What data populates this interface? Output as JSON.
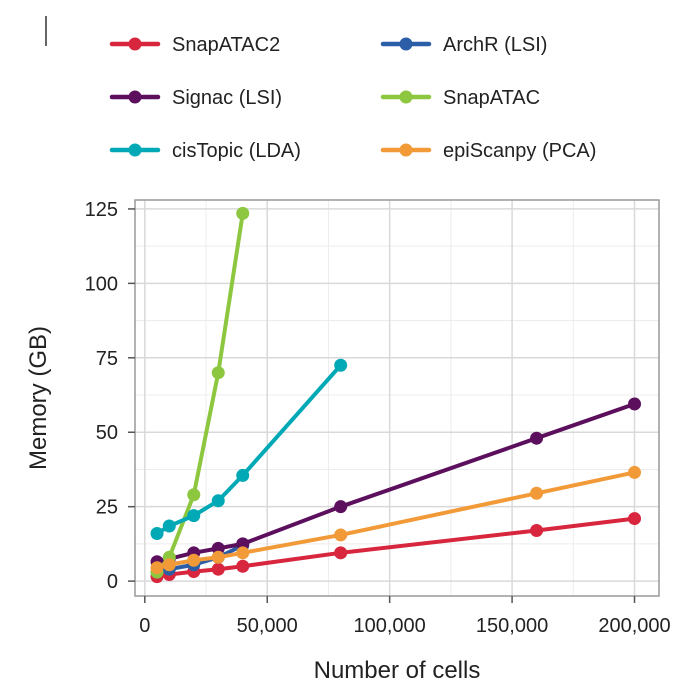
{
  "chart_data": {
    "type": "line",
    "title": "",
    "xlabel": "Number of cells",
    "ylabel": "Memory (GB)",
    "xlim": [
      -4000,
      210000
    ],
    "ylim": [
      -5,
      128
    ],
    "xticks": [
      0,
      50000,
      100000,
      150000,
      200000
    ],
    "xtick_labels": [
      "0",
      "50,000",
      "100,000",
      "150,000",
      "200,000"
    ],
    "yticks": [
      0,
      25,
      50,
      75,
      100,
      125
    ],
    "ytick_labels": [
      "0",
      "25",
      "50",
      "75",
      "100",
      "125"
    ],
    "grid": true,
    "legend_position": "top",
    "series": [
      {
        "name": "SnapATAC2",
        "color": "#d7263d",
        "x": [
          5000,
          10000,
          20000,
          30000,
          40000,
          80000,
          160000,
          200000
        ],
        "y": [
          1.5,
          2.2,
          3.2,
          4.0,
          5.0,
          9.5,
          17.0,
          21.0
        ]
      },
      {
        "name": "ArchR (LSI)",
        "color": "#2b5ea7",
        "x": [
          5000,
          10000,
          20000,
          30000,
          40000
        ],
        "y": [
          3.0,
          4.0,
          5.5,
          8.0,
          12.0
        ]
      },
      {
        "name": "Signac (LSI)",
        "color": "#5c0f5c",
        "x": [
          5000,
          10000,
          20000,
          30000,
          40000,
          80000,
          160000,
          200000
        ],
        "y": [
          6.5,
          7.5,
          9.5,
          11.0,
          12.5,
          25.0,
          48.0,
          59.5
        ]
      },
      {
        "name": "SnapATAC",
        "color": "#8dc63f",
        "x": [
          5000,
          10000,
          20000,
          30000,
          40000
        ],
        "y": [
          3.0,
          8.0,
          29.0,
          70.0,
          123.5
        ]
      },
      {
        "name": "cisTopic (LDA)",
        "color": "#00a9b5",
        "x": [
          5000,
          10000,
          20000,
          30000,
          40000,
          80000
        ],
        "y": [
          16.0,
          18.5,
          22.0,
          27.0,
          35.5,
          72.5
        ]
      },
      {
        "name": "epiScanpy (PCA)",
        "color": "#f29a38",
        "x": [
          5000,
          10000,
          20000,
          30000,
          40000,
          80000,
          160000,
          200000
        ],
        "y": [
          4.5,
          5.5,
          7.0,
          8.0,
          9.5,
          15.5,
          29.5,
          36.5
        ]
      }
    ]
  }
}
